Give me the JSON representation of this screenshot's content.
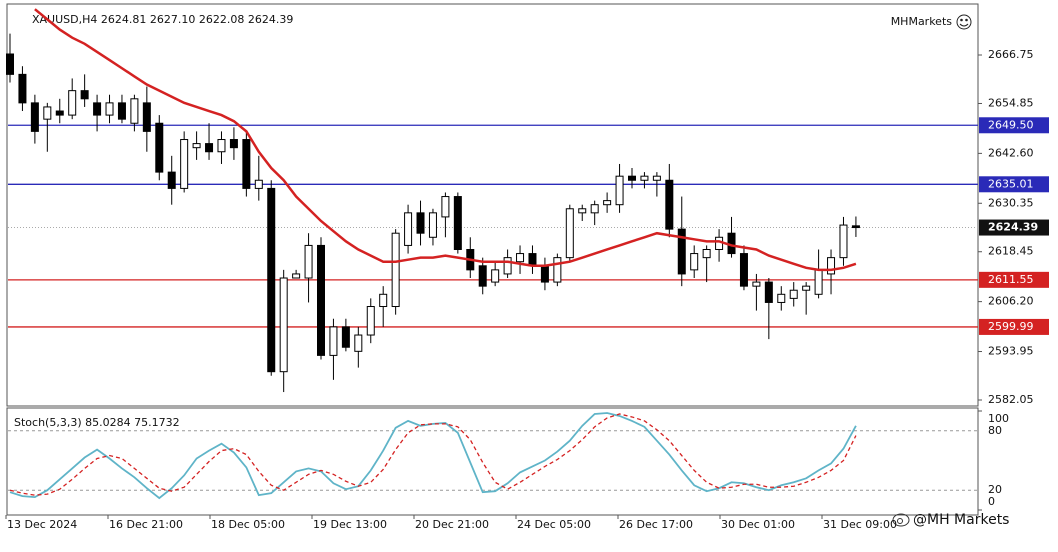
{
  "chart_data": [
    {
      "type": "candlestick",
      "title": "XAUUSD,H4 2624.81 2627.10 2622.08 2624.39",
      "brand": "MHMarkets",
      "watermark": "@MH Markets",
      "open": [
        2667,
        2662,
        2655,
        2651,
        2653,
        2652,
        2658,
        2655,
        2652,
        2655,
        2650,
        2655,
        2650,
        2638,
        2634,
        2644,
        2645,
        2643,
        2646,
        2646,
        2634,
        2634,
        2589,
        2612,
        2612,
        2620,
        2593,
        2600,
        2594,
        2598,
        2605,
        2605,
        2620,
        2628,
        2622,
        2627,
        2632,
        2619,
        2615,
        2611,
        2613,
        2616,
        2618,
        2615,
        2611,
        2617,
        2628,
        2628,
        2630,
        2630,
        2637,
        2636,
        2636,
        2636,
        2624,
        2614,
        2617,
        2619,
        2623,
        2618,
        2610,
        2611,
        2606,
        2607,
        2609,
        2608,
        2613,
        2617,
        2624.81
      ],
      "high": [
        2672,
        2664,
        2657,
        2655,
        2656,
        2661,
        2662,
        2657,
        2657,
        2657,
        2657,
        2659,
        2652,
        2642,
        2648,
        2648,
        2650,
        2648,
        2649,
        2648,
        2642,
        2636,
        2614,
        2614,
        2623,
        2622,
        2602,
        2602,
        2600,
        2607,
        2610,
        2624,
        2630,
        2631,
        2629,
        2633,
        2633,
        2622,
        2617,
        2616,
        2619,
        2620,
        2620,
        2617,
        2618,
        2630,
        2630,
        2631,
        2633,
        2640,
        2639,
        2638,
        2638,
        2640,
        2632,
        2620,
        2620,
        2624,
        2627,
        2620,
        2613,
        2612,
        2610,
        2611,
        2611,
        2619,
        2619,
        2627,
        2627.1
      ],
      "low": [
        2660,
        2653,
        2645,
        2643,
        2650,
        2651,
        2654,
        2648,
        2650,
        2650,
        2648,
        2643,
        2636,
        2630,
        2633,
        2641,
        2641,
        2640,
        2641,
        2632,
        2631,
        2588,
        2584,
        2612,
        2606,
        2592,
        2587,
        2594,
        2590,
        2596,
        2600,
        2603,
        2618,
        2620,
        2620,
        2622,
        2618,
        2612,
        2608,
        2610,
        2612,
        2613,
        2613,
        2609,
        2610,
        2616,
        2626,
        2625,
        2628,
        2628,
        2634,
        2634,
        2632,
        2622,
        2610,
        2612,
        2611,
        2616,
        2617,
        2609,
        2604,
        2597,
        2604,
        2605,
        2603,
        2607,
        2608,
        2615,
        2622.08
      ],
      "close": [
        2662,
        2655,
        2648,
        2654,
        2652,
        2658,
        2656,
        2652,
        2655,
        2651,
        2656,
        2648,
        2638,
        2634,
        2646,
        2645,
        2643,
        2646,
        2644,
        2634,
        2636,
        2589,
        2612,
        2613,
        2620,
        2593,
        2600,
        2595,
        2598,
        2605,
        2608,
        2623,
        2628,
        2623,
        2628,
        2632,
        2619,
        2614,
        2610,
        2614,
        2617,
        2618,
        2615,
        2611,
        2617,
        2629,
        2629,
        2630,
        2631,
        2637,
        2636,
        2637,
        2637,
        2624,
        2613,
        2618,
        2619,
        2622,
        2618,
        2610,
        2611,
        2606,
        2608,
        2609,
        2610,
        2614,
        2617,
        2625,
        2624.39
      ],
      "ma": {
        "color": "#d42222",
        "values": [
          null,
          null,
          2678,
          2675.5,
          2673,
          2671,
          2669.5,
          2667.5,
          2665.5,
          2663.5,
          2661.5,
          2659.5,
          2658,
          2656.5,
          2655,
          2654,
          2653,
          2652,
          2650.5,
          2648,
          2643,
          2639,
          2636,
          2632,
          2629,
          2626,
          2623.5,
          2621,
          2619,
          2617.5,
          2616,
          2616,
          2616.5,
          2617,
          2617,
          2617.5,
          2617,
          2616.5,
          2616,
          2616,
          2616,
          2615.5,
          2615,
          2615,
          2615.5,
          2616,
          2617,
          2618,
          2619,
          2620,
          2621,
          2622,
          2623,
          2622.5,
          2622,
          2621.5,
          2621,
          2621,
          2620,
          2619.5,
          2619,
          2617.5,
          2616.5,
          2615.5,
          2614.5,
          2614,
          2614,
          2614.5,
          2615.5
        ]
      },
      "levels": [
        {
          "value": 2649.5,
          "label": "2649.50",
          "color": "#2a2ab8"
        },
        {
          "value": 2635.01,
          "label": "2635.01",
          "color": "#2a2ab8"
        },
        {
          "value": 2611.55,
          "label": "2611.55",
          "color": "#d42222"
        },
        {
          "value": 2599.99,
          "label": "2599.99",
          "color": "#d42222"
        }
      ],
      "current": {
        "value": 2624.39,
        "label": "2624.39"
      },
      "ylim": [
        2580.82,
        2679.03
      ],
      "yticks": [
        2666.75,
        2654.85,
        {
          "value": 2642.6,
          "label": "2642.60"
        },
        2630.35,
        2618.45,
        {
          "value": 2606.2,
          "label": "2606.20"
        },
        2593.95,
        2582.05
      ],
      "x_labels": [
        "13 Dec 2024",
        "16 Dec 21:00",
        "18 Dec 05:00",
        "19 Dec 13:00",
        "20 Dec 21:00",
        "24 Dec 05:00",
        "26 Dec 17:00",
        "30 Dec 01:00",
        "31 Dec 09:00"
      ]
    },
    {
      "type": "stochastic",
      "title": "Stoch(5,3,3) 85.0284 75.1732",
      "main": {
        "color": "#5fb4c8",
        "values": [
          18,
          14,
          13,
          20,
          31,
          42,
          53,
          61,
          52,
          42,
          33,
          22,
          12,
          22,
          35,
          52,
          60,
          67,
          58,
          43,
          15,
          17,
          28,
          39,
          42,
          39,
          27,
          21,
          24,
          40,
          60,
          83,
          90,
          85,
          87,
          88,
          78,
          48,
          18,
          19,
          27,
          38,
          44,
          50,
          59,
          70,
          85,
          97,
          98,
          95,
          90,
          84,
          70,
          56,
          40,
          25,
          19,
          22,
          28,
          27,
          23,
          20,
          25,
          28,
          32,
          40,
          47,
          62,
          85.0284
        ]
      },
      "signal": {
        "color": "#d42222",
        "values": [
          20,
          17,
          15,
          16,
          21,
          31,
          42,
          52,
          55,
          52,
          42,
          32,
          22,
          19,
          23,
          36,
          49,
          60,
          62,
          56,
          39,
          25,
          20,
          28,
          36,
          40,
          36,
          29,
          24,
          28,
          41,
          61,
          78,
          86,
          87,
          87,
          84,
          71,
          48,
          28,
          21,
          28,
          36,
          44,
          51,
          60,
          71,
          84,
          93,
          97,
          94,
          90,
          81,
          70,
          55,
          40,
          28,
          22,
          23,
          26,
          26,
          23,
          23,
          24,
          28,
          33,
          40,
          50,
          75.1732
        ]
      },
      "ylim": [
        0,
        100
      ],
      "yticks": [
        100,
        80,
        20,
        0
      ]
    }
  ]
}
